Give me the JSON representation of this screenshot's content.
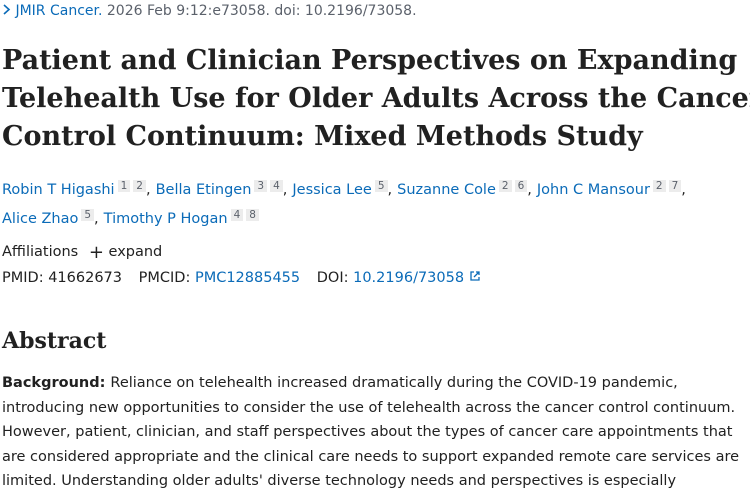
{
  "citation": {
    "journal": "JMIR Cancer.",
    "details": "2026 Feb 9:12:e73058. doi: 10.2196/73058."
  },
  "title_lines": [
    "Patient and Clinician Perspectives on Expanding",
    "Telehealth Use for Older Adults Across the Cancer",
    "Control Continuum: Mixed Methods Study"
  ],
  "author_lines": [
    [
      {
        "name": "Robin T Higashi",
        "affiliations": [
          "1",
          "2"
        ],
        "separator": ","
      },
      {
        "name": "Bella Etingen",
        "affiliations": [
          "3",
          "4"
        ],
        "separator": ","
      },
      {
        "name": "Jessica Lee",
        "affiliations": [
          "5"
        ],
        "separator": ","
      },
      {
        "name": "Suzanne Cole",
        "affiliations": [
          "2",
          "6"
        ],
        "separator": ","
      },
      {
        "name": "John C Mansour",
        "affiliations": [
          "2",
          "7"
        ],
        "separator": ","
      }
    ],
    [
      {
        "name": "Alice Zhao",
        "affiliations": [
          "5"
        ],
        "separator": ","
      },
      {
        "name": "Timothy P Hogan",
        "affiliations": [
          "4",
          "8"
        ]
      }
    ]
  ],
  "affiliations": {
    "label": "Affiliations",
    "action": "expand"
  },
  "identifiers": {
    "pmid_label": "PMID:",
    "pmid": "41662673",
    "pmcid_label": "PMCID:",
    "pmcid": "PMC12885455",
    "doi_label": "DOI:",
    "doi": "10.2196/73058"
  },
  "abstract": {
    "heading": "Abstract",
    "background_label": "Background:",
    "lines": [
      "Reliance on telehealth increased dramatically during the COVID-19 pandemic,",
      "introducing new opportunities to consider the use of telehealth across the cancer control continuum.",
      "However, patient, clinician, and staff perspectives about the types of cancer care appointments that",
      "are considered appropriate and the clinical care needs to support expanded remote care services are",
      "limited. Understanding older adults' diverse technology needs and perspectives is especially"
    ]
  }
}
